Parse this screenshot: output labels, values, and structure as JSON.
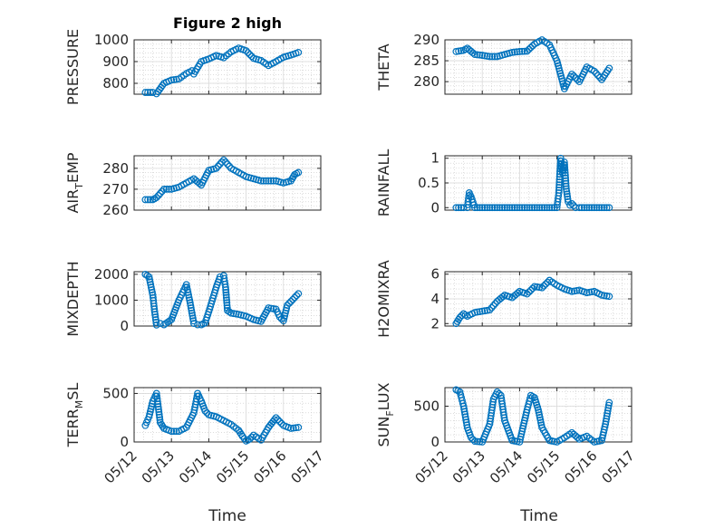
{
  "figure": {
    "title": "Figure 2 high",
    "marker_color": "#0072BD"
  },
  "chart_data": [
    {
      "type": "scatter",
      "ylabel": "PRESSURE",
      "ylim": [
        750,
        1000
      ],
      "yticks": [
        800,
        900,
        1000
      ],
      "xlim": [
        0,
        5
      ],
      "xticks": [
        "05/12",
        "05/13",
        "05/14",
        "05/15",
        "05/16",
        "05/17"
      ],
      "grid": true,
      "x": [
        0.3,
        0.5,
        0.6,
        0.8,
        1.0,
        1.2,
        1.4,
        1.55,
        1.6,
        1.8,
        2.0,
        2.2,
        2.4,
        2.6,
        2.8,
        3.0,
        3.2,
        3.4,
        3.6,
        3.8,
        4.0,
        4.2,
        4.4
      ],
      "y": [
        758,
        758,
        752,
        800,
        815,
        820,
        845,
        858,
        843,
        900,
        912,
        928,
        918,
        945,
        962,
        950,
        915,
        905,
        882,
        900,
        920,
        930,
        942
      ]
    },
    {
      "type": "scatter",
      "ylabel": "THETA",
      "ylim": [
        277,
        290
      ],
      "yticks": [
        280,
        285,
        290
      ],
      "xlim": [
        0,
        5
      ],
      "xticks": [
        "05/12",
        "05/13",
        "05/14",
        "05/15",
        "05/16",
        "05/17"
      ],
      "grid": true,
      "x": [
        0.3,
        0.5,
        0.6,
        0.8,
        1.0,
        1.2,
        1.4,
        1.6,
        1.8,
        2.0,
        2.2,
        2.4,
        2.6,
        2.8,
        3.0,
        3.2,
        3.4,
        3.6,
        3.8,
        4.0,
        4.2,
        4.4
      ],
      "y": [
        287.2,
        287.5,
        288.0,
        286.5,
        286.3,
        286.0,
        286.0,
        286.5,
        287.0,
        287.2,
        287.3,
        289.0,
        290.0,
        288.8,
        285.0,
        278.3,
        281.8,
        280.0,
        283.5,
        282.5,
        280.5,
        283.2
      ]
    },
    {
      "type": "scatter",
      "ylabel": "AIR_TEMP",
      "ylim": [
        260,
        286
      ],
      "yticks": [
        260,
        270,
        280
      ],
      "xlim": [
        0,
        5
      ],
      "xticks": [
        "05/12",
        "05/13",
        "05/14",
        "05/15",
        "05/16",
        "05/17"
      ],
      "grid": true,
      "x": [
        0.3,
        0.5,
        0.6,
        0.8,
        1.0,
        1.2,
        1.4,
        1.6,
        1.8,
        2.0,
        2.2,
        2.4,
        2.6,
        2.8,
        3.0,
        3.2,
        3.4,
        3.6,
        3.8,
        4.0,
        4.2,
        4.3,
        4.4
      ],
      "y": [
        265,
        265,
        266,
        270,
        270,
        271,
        273,
        275,
        272,
        279,
        280,
        284,
        280,
        278,
        276,
        275,
        274,
        274,
        274,
        273,
        274,
        277,
        278
      ]
    },
    {
      "type": "scatter",
      "ylabel": "RAINFALL",
      "ylim": [
        -0.05,
        1.05
      ],
      "yticks": [
        0,
        0.5,
        1
      ],
      "xlim": [
        0,
        5
      ],
      "xticks": [
        "05/12",
        "05/13",
        "05/14",
        "05/15",
        "05/16",
        "05/17"
      ],
      "grid": true,
      "x": [
        0.3,
        0.5,
        0.6,
        0.65,
        0.7,
        0.8,
        1.0,
        1.2,
        1.4,
        1.6,
        1.8,
        2.0,
        2.2,
        2.4,
        2.6,
        2.8,
        3.0,
        3.05,
        3.1,
        3.15,
        3.2,
        3.25,
        3.3,
        3.35,
        3.4,
        3.5,
        3.6,
        3.8,
        4.0,
        4.2,
        4.4
      ],
      "y": [
        0,
        0,
        0,
        0.3,
        0.22,
        0,
        0,
        0,
        0,
        0,
        0,
        0,
        0,
        0,
        0,
        0,
        0,
        0.3,
        1.0,
        0.7,
        0.92,
        0.38,
        0.12,
        0.05,
        0.08,
        0,
        0,
        0,
        0,
        0,
        0
      ]
    },
    {
      "type": "scatter",
      "ylabel": "MIXDEPTH",
      "ylim": [
        0,
        2100
      ],
      "yticks": [
        0,
        1000,
        2000
      ],
      "xlim": [
        0,
        5
      ],
      "xticks": [
        "05/12",
        "05/13",
        "05/14",
        "05/15",
        "05/16",
        "05/17"
      ],
      "grid": true,
      "x": [
        0.3,
        0.4,
        0.5,
        0.55,
        0.6,
        0.7,
        0.8,
        0.9,
        1.0,
        1.2,
        1.4,
        1.5,
        1.6,
        1.7,
        1.8,
        1.9,
        2.0,
        2.2,
        2.3,
        2.4,
        2.45,
        2.5,
        2.6,
        2.8,
        3.0,
        3.2,
        3.4,
        3.6,
        3.8,
        3.9,
        4.0,
        4.1,
        4.2,
        4.3,
        4.4
      ],
      "y": [
        2000,
        1900,
        1200,
        550,
        40,
        100,
        50,
        150,
        250,
        1000,
        1600,
        900,
        100,
        50,
        50,
        120,
        550,
        1500,
        1900,
        1950,
        1500,
        600,
        500,
        450,
        380,
        250,
        180,
        700,
        650,
        350,
        200,
        800,
        950,
        1100,
        1250
      ]
    },
    {
      "type": "scatter",
      "ylabel": "H2OMIXRA",
      "ylim": [
        1.8,
        6.2
      ],
      "yticks": [
        2,
        4,
        6
      ],
      "xlim": [
        0,
        5
      ],
      "xticks": [
        "05/12",
        "05/13",
        "05/14",
        "05/15",
        "05/16",
        "05/17"
      ],
      "grid": true,
      "x": [
        0.3,
        0.4,
        0.5,
        0.6,
        0.8,
        1.0,
        1.2,
        1.4,
        1.6,
        1.8,
        2.0,
        2.2,
        2.4,
        2.6,
        2.8,
        3.0,
        3.2,
        3.4,
        3.6,
        3.8,
        4.0,
        4.2,
        4.4
      ],
      "y": [
        2.0,
        2.5,
        2.8,
        2.6,
        2.9,
        3.0,
        3.1,
        3.8,
        4.3,
        4.1,
        4.6,
        4.4,
        5.0,
        4.9,
        5.5,
        5.1,
        4.8,
        4.6,
        4.7,
        4.5,
        4.6,
        4.3,
        4.2
      ]
    },
    {
      "type": "scatter",
      "ylabel": "TERR_MSL",
      "ylim": [
        0,
        560
      ],
      "yticks": [
        0,
        500
      ],
      "xlim": [
        0,
        5
      ],
      "xticks": [
        "05/12",
        "05/13",
        "05/14",
        "05/15",
        "05/16",
        "05/17"
      ],
      "grid": true,
      "x": [
        0.3,
        0.4,
        0.5,
        0.6,
        0.7,
        0.8,
        1.0,
        1.2,
        1.4,
        1.6,
        1.7,
        1.8,
        1.9,
        2.0,
        2.2,
        2.4,
        2.6,
        2.8,
        2.9,
        3.0,
        3.1,
        3.2,
        3.4,
        3.6,
        3.8,
        4.0,
        4.2,
        4.4
      ],
      "y": [
        170,
        260,
        420,
        500,
        200,
        140,
        110,
        110,
        150,
        300,
        500,
        420,
        320,
        280,
        260,
        220,
        180,
        120,
        60,
        10,
        30,
        70,
        20,
        150,
        250,
        170,
        140,
        150
      ]
    },
    {
      "type": "scatter",
      "ylabel": "SUN_FLUX",
      "ylim": [
        0,
        760
      ],
      "yticks": [
        0,
        500
      ],
      "xlim": [
        0,
        5
      ],
      "xticks": [
        "05/12",
        "05/13",
        "05/14",
        "05/15",
        "05/16",
        "05/17"
      ],
      "grid": true,
      "x": [
        0.3,
        0.4,
        0.5,
        0.6,
        0.7,
        0.8,
        1.0,
        1.2,
        1.3,
        1.4,
        1.5,
        1.6,
        1.8,
        2.0,
        2.2,
        2.3,
        2.4,
        2.5,
        2.6,
        2.8,
        3.0,
        3.2,
        3.4,
        3.6,
        3.8,
        4.0,
        4.2,
        4.3,
        4.4
      ],
      "y": [
        730,
        700,
        500,
        200,
        60,
        10,
        0,
        250,
        600,
        700,
        650,
        300,
        20,
        0,
        450,
        650,
        620,
        450,
        200,
        20,
        0,
        60,
        130,
        40,
        80,
        0,
        20,
        250,
        550
      ]
    }
  ],
  "xlabel": "Time"
}
